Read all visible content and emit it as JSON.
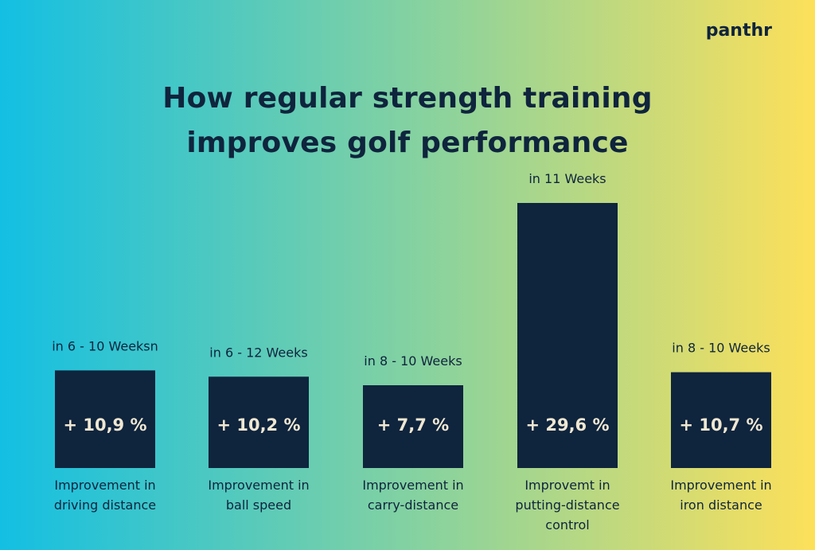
{
  "brand": "panthr",
  "title": "How regular strength training improves golf performance",
  "colors": {
    "gradient_start": "#13bfe3",
    "gradient_mid": "#8ed39b",
    "gradient_end": "#fde05a",
    "bar": "#0f243d",
    "text": "#0f243d",
    "value_text": "#efe7d2"
  },
  "chart_data": {
    "type": "bar",
    "title": "How regular strength training improves golf performance",
    "categories": [
      "Improvement in driving distance",
      "Improvement in ball speed",
      "Improvement in carry-distance",
      "Improvemt in putting-distance control",
      "Improvement in iron distance"
    ],
    "category_lines": [
      [
        "Improvement in",
        "driving distance"
      ],
      [
        "Improvement in",
        "ball speed"
      ],
      [
        "Improvement in",
        "carry-distance"
      ],
      [
        "Improvemt in",
        "putting-distance",
        "control"
      ],
      [
        "Improvement in",
        "iron distance"
      ]
    ],
    "values": [
      10.9,
      10.2,
      7.7,
      29.6,
      10.7
    ],
    "value_labels": [
      "+ 10,9 %",
      "+ 10,2 %",
      "+ 7,7 %",
      "+ 29,6 %",
      "+ 10,7 %"
    ],
    "period_labels": [
      "in 6 - 10 Weeksn",
      "in 6 - 12 Weeks",
      "in 8 - 10 Weeks",
      "in 11 Weeks",
      "in 8 - 10 Weeks"
    ],
    "ylim": [
      0,
      29.6
    ],
    "xlabel": "",
    "ylabel": "",
    "grid": false,
    "legend": "none"
  }
}
